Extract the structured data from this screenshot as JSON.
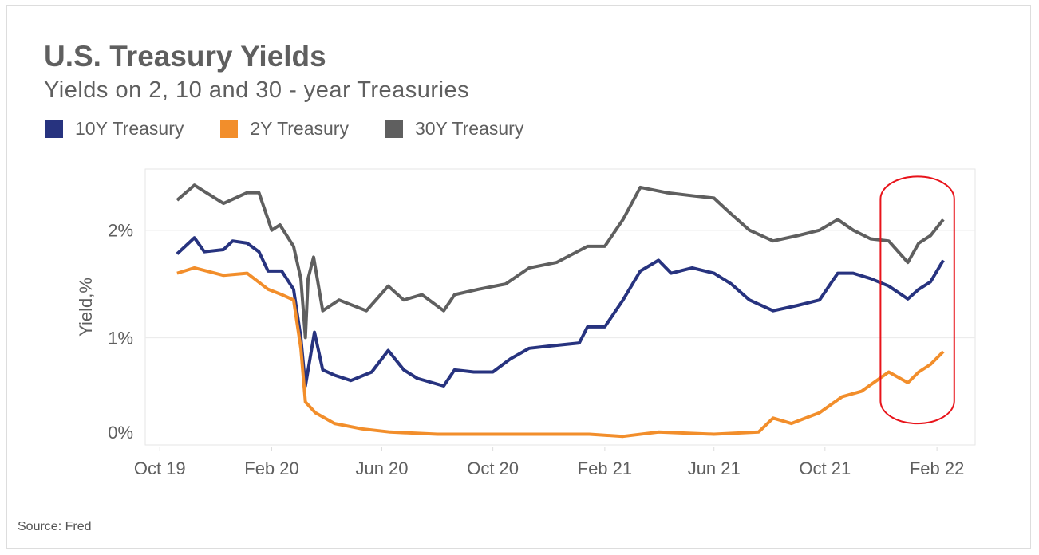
{
  "chart_data": {
    "type": "line",
    "title": "U.S. Treasury Yields",
    "subtitle": "Yields on 2, 10 and 30 - year Treasuries",
    "ylabel": "Yield,%",
    "xlabel": "",
    "source": "Source: Fred",
    "ylim": [
      0,
      2.57
    ],
    "yticks": [
      {
        "value": 0,
        "label": "0%"
      },
      {
        "value": 1,
        "label": "1%"
      },
      {
        "value": 2,
        "label": "2%"
      }
    ],
    "xlim": [
      "2019-09-15",
      "2022-03-15"
    ],
    "xticks": [
      {
        "date": "2019-10-01",
        "label": "Oct 19"
      },
      {
        "date": "2020-02-01",
        "label": "Feb 20"
      },
      {
        "date": "2020-06-01",
        "label": "Jun 20"
      },
      {
        "date": "2020-10-01",
        "label": "Oct 20"
      },
      {
        "date": "2021-02-01",
        "label": "Feb 21"
      },
      {
        "date": "2021-06-01",
        "label": "Jun 21"
      },
      {
        "date": "2021-10-01",
        "label": "Oct 21"
      },
      {
        "date": "2022-02-01",
        "label": "Feb 22"
      }
    ],
    "grid": "horizontal",
    "legend_position": "top-left",
    "highlight": {
      "shape": "rounded-rectangle",
      "color": "#e8141b",
      "from": "2021-12-01",
      "to": "2022-02-20",
      "ymin": 0.2,
      "ymax": 2.5
    },
    "series": [
      {
        "name": "10Y Treasury",
        "color": "#27337f",
        "x": [
          "2019-10-20",
          "2019-11-08",
          "2019-11-19",
          "2019-12-10",
          "2019-12-20",
          "2020-01-05",
          "2020-01-18",
          "2020-01-28",
          "2020-02-12",
          "2020-02-25",
          "2020-03-04",
          "2020-03-09",
          "2020-03-17",
          "2020-03-19",
          "2020-03-28",
          "2020-04-10",
          "2020-04-28",
          "2020-05-21",
          "2020-06-08",
          "2020-06-25",
          "2020-07-10",
          "2020-08-08",
          "2020-08-20",
          "2020-09-10",
          "2020-10-01",
          "2020-10-20",
          "2020-11-10",
          "2020-12-01",
          "2021-01-04",
          "2021-01-13",
          "2021-02-01",
          "2021-02-21",
          "2021-03-12",
          "2021-04-01",
          "2021-04-15",
          "2021-05-08",
          "2021-06-01",
          "2021-06-20",
          "2021-07-10",
          "2021-08-05",
          "2021-09-01",
          "2021-09-25",
          "2021-10-15",
          "2021-11-01",
          "2021-11-20",
          "2021-12-10",
          "2021-12-31",
          "2022-01-12",
          "2022-01-25",
          "2022-02-08"
        ],
        "values": [
          1.78,
          1.93,
          1.8,
          1.82,
          1.9,
          1.88,
          1.8,
          1.62,
          1.62,
          1.45,
          1.0,
          0.55,
          0.95,
          1.05,
          0.7,
          0.65,
          0.6,
          0.68,
          0.88,
          0.7,
          0.62,
          0.55,
          0.7,
          0.68,
          0.68,
          0.8,
          0.9,
          0.92,
          0.95,
          1.1,
          1.1,
          1.35,
          1.62,
          1.72,
          1.6,
          1.65,
          1.6,
          1.5,
          1.35,
          1.25,
          1.3,
          1.35,
          1.6,
          1.6,
          1.55,
          1.48,
          1.36,
          1.45,
          1.52,
          1.72
        ]
      },
      {
        "name": "2Y Treasury",
        "color": "#f28e2b",
        "x": [
          "2019-10-20",
          "2019-11-08",
          "2019-12-10",
          "2020-01-05",
          "2020-01-28",
          "2020-02-12",
          "2020-02-25",
          "2020-03-04",
          "2020-03-09",
          "2020-03-20",
          "2020-04-10",
          "2020-05-10",
          "2020-06-10",
          "2020-08-01",
          "2020-10-01",
          "2020-12-01",
          "2021-01-15",
          "2021-02-21",
          "2021-04-01",
          "2021-06-01",
          "2021-07-20",
          "2021-08-05",
          "2021-08-25",
          "2021-09-25",
          "2021-10-20",
          "2021-11-10",
          "2021-12-10",
          "2021-12-31",
          "2022-01-12",
          "2022-01-25",
          "2022-02-08"
        ],
        "values": [
          1.6,
          1.65,
          1.58,
          1.6,
          1.45,
          1.4,
          1.35,
          0.9,
          0.4,
          0.3,
          0.2,
          0.15,
          0.12,
          0.1,
          0.1,
          0.1,
          0.1,
          0.08,
          0.12,
          0.1,
          0.12,
          0.25,
          0.2,
          0.3,
          0.45,
          0.5,
          0.68,
          0.58,
          0.68,
          0.75,
          0.87
        ]
      },
      {
        "name": "30Y Treasury",
        "color": "#5f5f5f",
        "x": [
          "2019-10-20",
          "2019-11-08",
          "2019-12-10",
          "2020-01-05",
          "2020-01-18",
          "2020-02-01",
          "2020-02-10",
          "2020-02-25",
          "2020-03-04",
          "2020-03-09",
          "2020-03-12",
          "2020-03-18",
          "2020-03-28",
          "2020-04-15",
          "2020-05-15",
          "2020-06-08",
          "2020-06-25",
          "2020-07-15",
          "2020-08-08",
          "2020-08-20",
          "2020-09-15",
          "2020-10-15",
          "2020-11-10",
          "2020-12-10",
          "2021-01-13",
          "2021-02-01",
          "2021-02-21",
          "2021-03-12",
          "2021-04-10",
          "2021-05-10",
          "2021-06-01",
          "2021-06-20",
          "2021-07-10",
          "2021-08-05",
          "2021-09-01",
          "2021-09-25",
          "2021-10-15",
          "2021-11-01",
          "2021-11-20",
          "2021-12-10",
          "2021-12-31",
          "2022-01-12",
          "2022-01-25",
          "2022-02-08"
        ],
        "values": [
          2.28,
          2.42,
          2.25,
          2.35,
          2.35,
          2.0,
          2.05,
          1.85,
          1.55,
          1.0,
          1.55,
          1.75,
          1.25,
          1.35,
          1.25,
          1.48,
          1.35,
          1.4,
          1.25,
          1.4,
          1.45,
          1.5,
          1.65,
          1.7,
          1.85,
          1.85,
          2.1,
          2.4,
          2.35,
          2.32,
          2.3,
          2.15,
          2.0,
          1.9,
          1.95,
          2.0,
          2.1,
          2.0,
          1.92,
          1.9,
          1.7,
          1.88,
          1.95,
          2.1
        ]
      }
    ]
  }
}
